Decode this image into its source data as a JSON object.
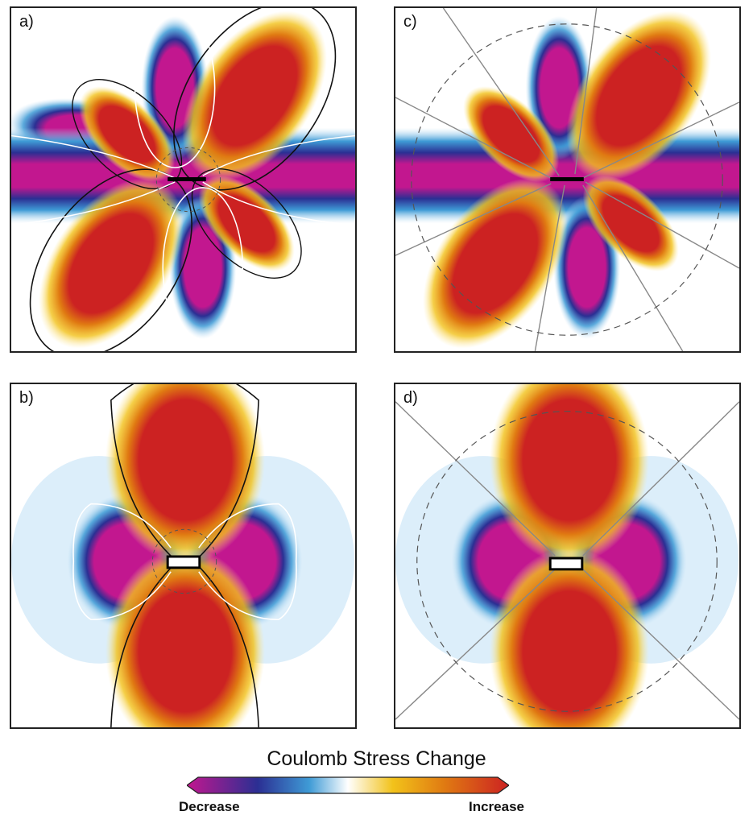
{
  "panels": {
    "a": {
      "label": "a)"
    },
    "b": {
      "label": "b)"
    },
    "c": {
      "label": "c)"
    },
    "d": {
      "label": "d)"
    }
  },
  "colorbar": {
    "title": "Coulomb Stress Change",
    "low_label": "Decrease",
    "high_label": "Increase",
    "colors": [
      "#c2178f",
      "#2b2f93",
      "#3f9bd6",
      "#ffffff",
      "#f2c21a",
      "#e07a12",
      "#cc2222"
    ]
  },
  "colors": {
    "increase_core": "#cc2222",
    "increase_mid": "#e07a12",
    "increase_edge": "#f2c21a",
    "decrease_core": "#c2178f",
    "decrease_mid": "#2b2f93",
    "decrease_edge": "#3f9bd6",
    "fault": "#000000",
    "contour_positive": "#111111",
    "contour_negative": "#ffffff",
    "guide_lines": "#777777"
  }
}
